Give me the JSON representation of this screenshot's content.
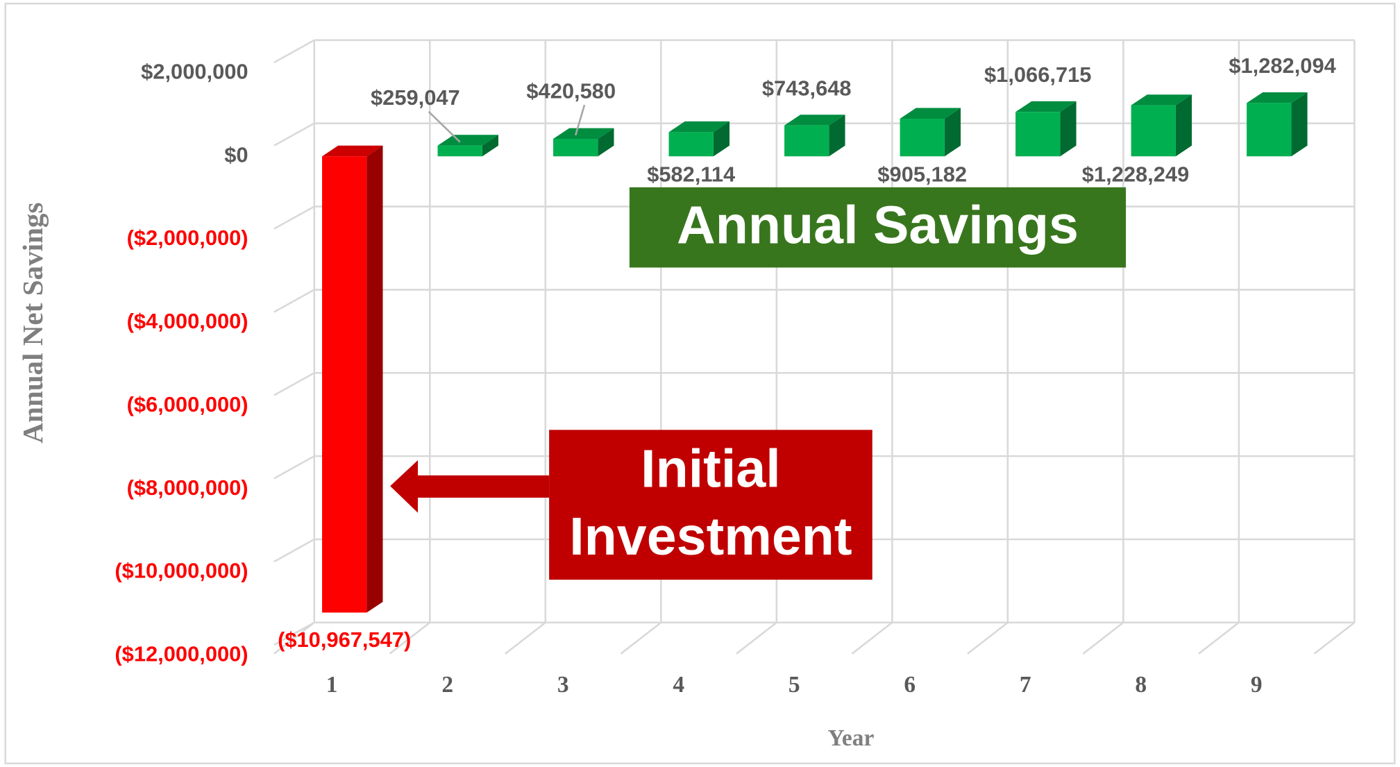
{
  "chart_data": {
    "type": "bar3d",
    "x_label": "Year",
    "y_label": "Annual Net Savings",
    "categories": [
      "1",
      "2",
      "3",
      "4",
      "5",
      "6",
      "7",
      "8",
      "9"
    ],
    "values": [
      -10967547,
      259047,
      420580,
      582114,
      743648,
      905182,
      1066715,
      1228249,
      1282094
    ],
    "value_labels": [
      "($10,967,547)",
      "$259,047",
      "$420,580",
      "$582,114",
      "$743,648",
      "$905,182",
      "$1,066,715",
      "$1,228,249",
      "$1,282,094"
    ],
    "positive_color": "#00b050",
    "negative_color": "#ff0000",
    "negative_label_color": "#ff0000",
    "ylim": [
      -12000000,
      2000000
    ],
    "yticks": [
      {
        "value": 2000000,
        "label": "$2,000,000"
      },
      {
        "value": 0,
        "label": "$0"
      },
      {
        "value": -2000000,
        "label": "($2,000,000)"
      },
      {
        "value": -4000000,
        "label": "($4,000,000)"
      },
      {
        "value": -6000000,
        "label": "($6,000,000)"
      },
      {
        "value": -8000000,
        "label": "($8,000,000)"
      },
      {
        "value": -10000000,
        "label": "($10,000,000)"
      },
      {
        "value": -12000000,
        "label": "($12,000,000)"
      }
    ],
    "grid": true,
    "annotations": [
      {
        "text": "Annual Savings",
        "color": "#38761d"
      },
      {
        "lines": [
          "Initial",
          "Investment"
        ],
        "color": "#c00000"
      }
    ]
  }
}
